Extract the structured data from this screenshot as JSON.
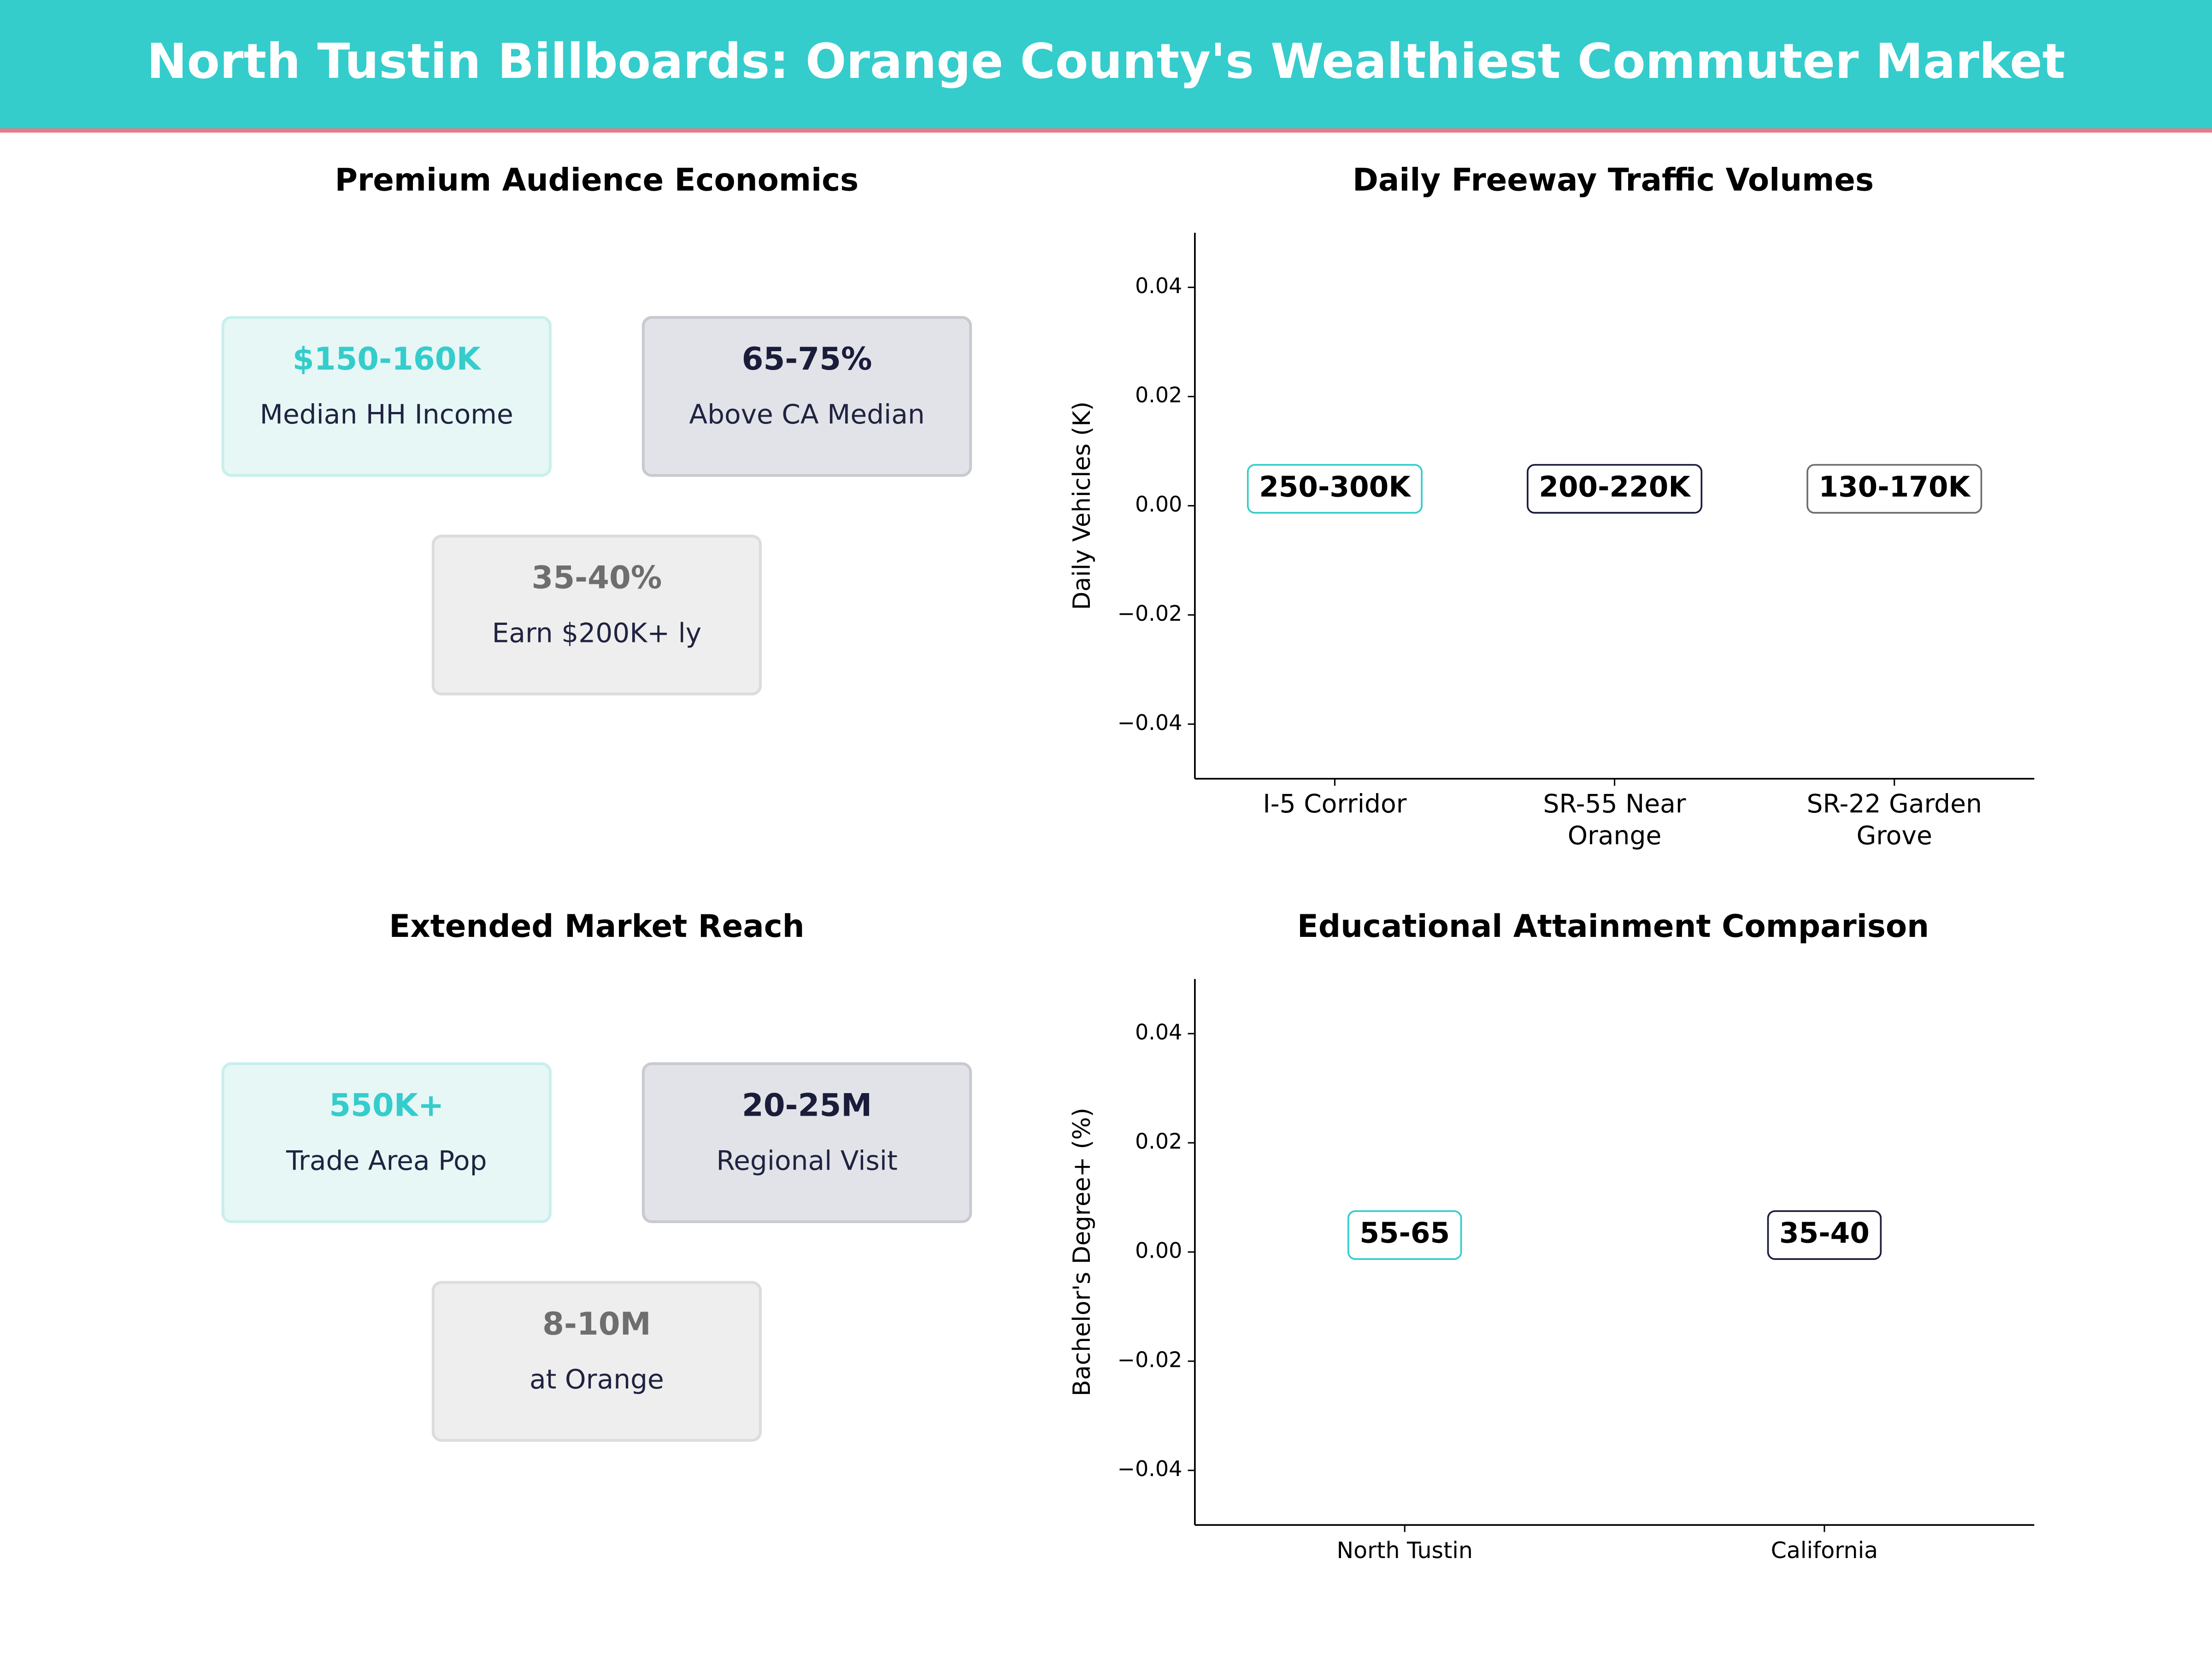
{
  "header": {
    "title": "North Tustin Billboards: Orange County's Wealthiest Commuter Market"
  },
  "panels": [
    {
      "title": "Premium Audience Economics",
      "cards": [
        {
          "value": "$150-160K",
          "label": "Median HH Income",
          "style": "teal"
        },
        {
          "value": "65-75%",
          "label": "Above CA Median",
          "style": "navy"
        },
        {
          "value": "35-40%",
          "label": "Earn $200K+ ly",
          "style": "gray"
        }
      ]
    },
    {
      "title": "Extended Market Reach",
      "cards": [
        {
          "value": "550K+",
          "label": "Trade Area Pop",
          "style": "teal"
        },
        {
          "value": "20-25M",
          "label": "Regional Visit",
          "style": "navy"
        },
        {
          "value": "8-10M",
          "label": "at Orange",
          "style": "gray"
        }
      ]
    }
  ],
  "chart_data": [
    {
      "type": "label",
      "title": "Daily Freeway Traffic Volumes",
      "ylabel": "Daily Vehicles (K)",
      "categories": [
        "I-5 Corridor",
        "SR-55 Near\nOrange",
        "SR-22 Garden\nGrove"
      ],
      "labels": [
        "250-300K",
        "200-220K",
        "130-170K"
      ],
      "label_colors": [
        "#35cccc",
        "#1a1d3a",
        "#6e6e6e"
      ],
      "ylim": [
        -0.05,
        0.05
      ],
      "yticks": [
        {
          "value": -0.04,
          "label": "−0.04"
        },
        {
          "value": -0.02,
          "label": "−0.02"
        },
        {
          "value": 0,
          "label": "0.00"
        },
        0.02,
        0.04
      ]
    },
    {
      "type": "label",
      "title": "Educational Attainment Comparison",
      "ylabel": "Bachelor's Degree+ (%)",
      "categories": [
        "North Tustin",
        "California"
      ],
      "labels": [
        "55-65",
        "35-40"
      ],
      "label_colors": [
        "#35cccc",
        "#1a1d3a"
      ],
      "ylim": [
        -0.05,
        0.05
      ],
      "yticks": [
        {
          "value": -0.04,
          "label": "−0.04"
        },
        {
          "value": -0.02,
          "label": "−0.02"
        },
        {
          "value": 0,
          "label": "0.00"
        },
        0.02,
        0.04
      ]
    }
  ]
}
